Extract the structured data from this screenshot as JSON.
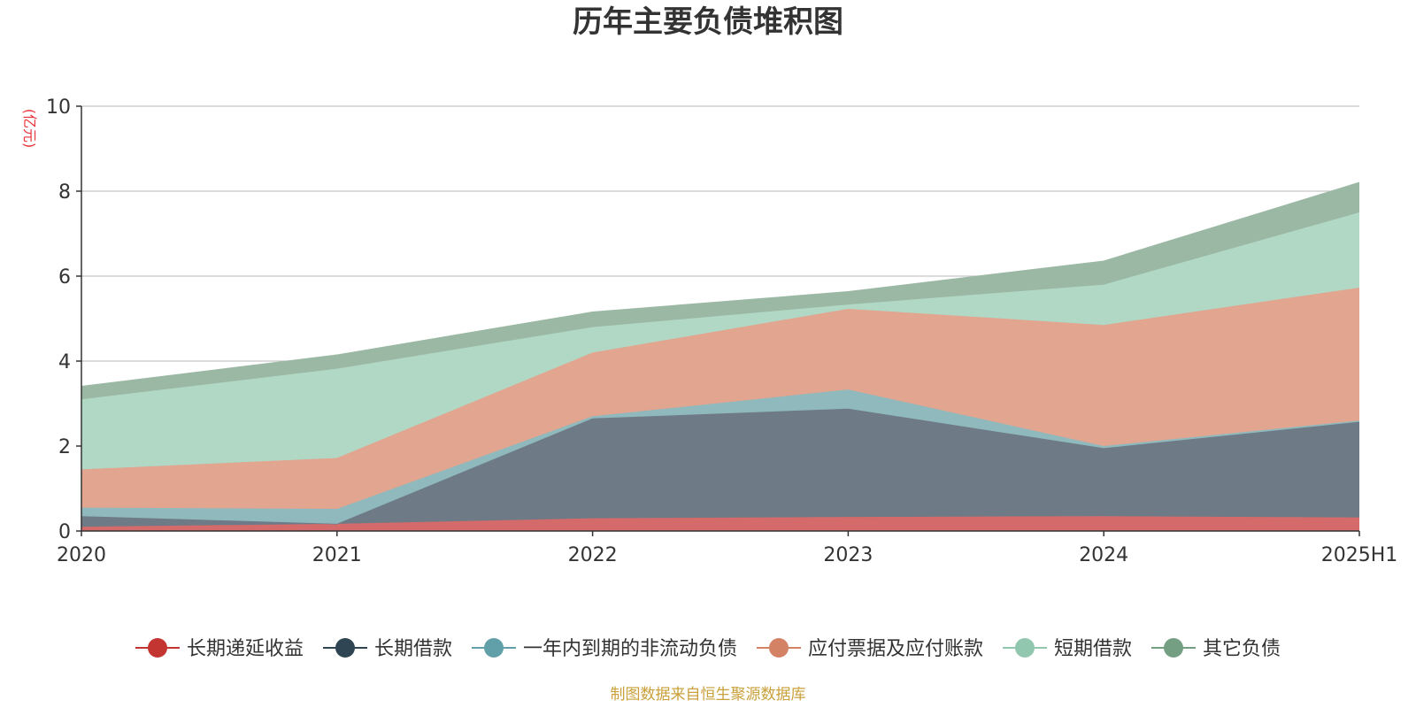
{
  "chart_data": {
    "type": "area",
    "stacked": true,
    "title": "历年主要负债堆积图",
    "y_unit": "(亿元)",
    "x": [
      "2020",
      "2021",
      "2022",
      "2023",
      "2024",
      "2025H1"
    ],
    "ylim": [
      0,
      10
    ],
    "yticks": [
      0,
      2,
      4,
      6,
      8,
      10
    ],
    "grid": true,
    "legend_position": "bottom",
    "series": [
      {
        "name": "长期递延收益",
        "values": [
          0.1,
          0.17,
          0.3,
          0.33,
          0.35,
          0.32
        ],
        "color": "#c23531",
        "fill": "#d46a6a"
      },
      {
        "name": "长期借款",
        "values": [
          0.25,
          0.0,
          2.35,
          2.55,
          1.6,
          2.25
        ],
        "color": "#2f4554",
        "fill": "#6e7b86"
      },
      {
        "name": "一年内到期的非流动负债",
        "values": [
          0.2,
          0.35,
          0.05,
          0.45,
          0.05,
          0.03
        ],
        "color": "#61a0a8",
        "fill": "#8fb9bd"
      },
      {
        "name": "应付票据及应付账款",
        "values": [
          0.9,
          1.2,
          1.5,
          1.9,
          2.85,
          3.13
        ],
        "color": "#d48265",
        "fill": "#e1a590"
      },
      {
        "name": "短期借款",
        "values": [
          1.65,
          2.1,
          0.6,
          0.1,
          0.95,
          1.77
        ],
        "color": "#91c7ae",
        "fill": "#b1d8c5"
      },
      {
        "name": "其它负债",
        "values": [
          0.3,
          0.32,
          0.35,
          0.3,
          0.55,
          0.7
        ],
        "color": "#749f83",
        "fill": "#9bb8a4"
      }
    ],
    "source": "制图数据来自恒生聚源数据库"
  }
}
